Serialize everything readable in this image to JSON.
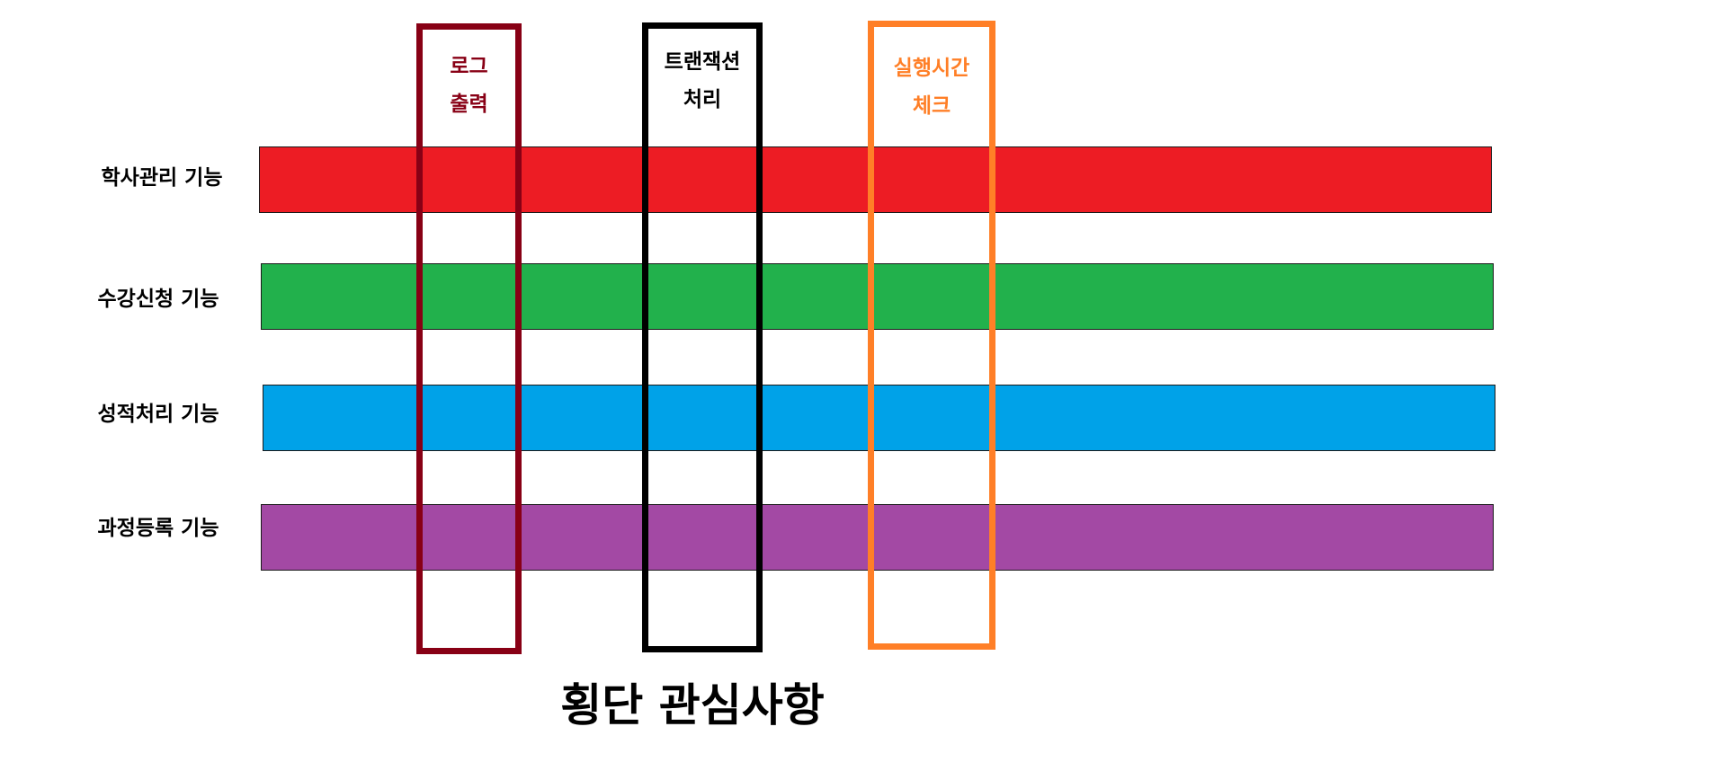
{
  "modules": [
    {
      "label": "학사관리 기능",
      "color": "#ed1c24"
    },
    {
      "label": "수강신청 기능",
      "color": "#22b14c"
    },
    {
      "label": "성적처리 기능",
      "color": "#00a2e8"
    },
    {
      "label": "과정등록 기능",
      "color": "#a349a4"
    }
  ],
  "concerns": [
    {
      "lines": "로그\n출력",
      "color": "#880015"
    },
    {
      "lines": "트랜잭션\n처리",
      "color": "#000000"
    },
    {
      "lines": "실행시간\n체크",
      "color": "#ff7f27"
    }
  ],
  "footer": {
    "title": "횡단 관심사항"
  }
}
